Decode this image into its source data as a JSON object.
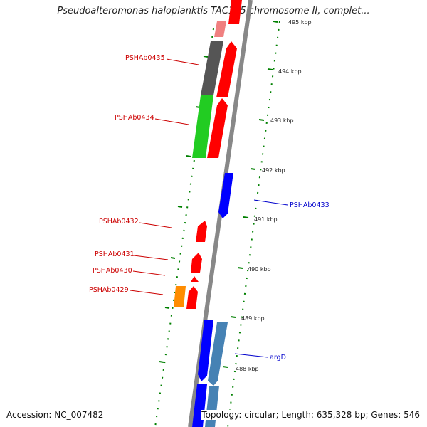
{
  "title": "Pseudoalteromonas haloplanktis TAC125 chromosome II, complet...",
  "accession_label": "Accession: NC_007482",
  "stats_label": "Topology: circular; Length: 635,328 bp; Genes: 546",
  "colors": {
    "forward_gene": "#ff0000",
    "reverse_gene": "#0000ff",
    "label_red": "#cc0000",
    "label_blue": "#0000cc",
    "tick": "#008000",
    "backbone": "#888888"
  },
  "scale_labels": [
    "495 kbp",
    "494 kbp",
    "493 kbp",
    "492 kbp",
    "491 kbp",
    "490 kbp",
    "489 kbp",
    "488 kbp"
  ],
  "gene_labels": [
    "PSHAb0435",
    "PSHAb0434",
    "PSHAb0433",
    "PSHAb0432",
    "PSHAb0431",
    "PSHAb0430",
    "PSHAb0429",
    "argD"
  ]
}
